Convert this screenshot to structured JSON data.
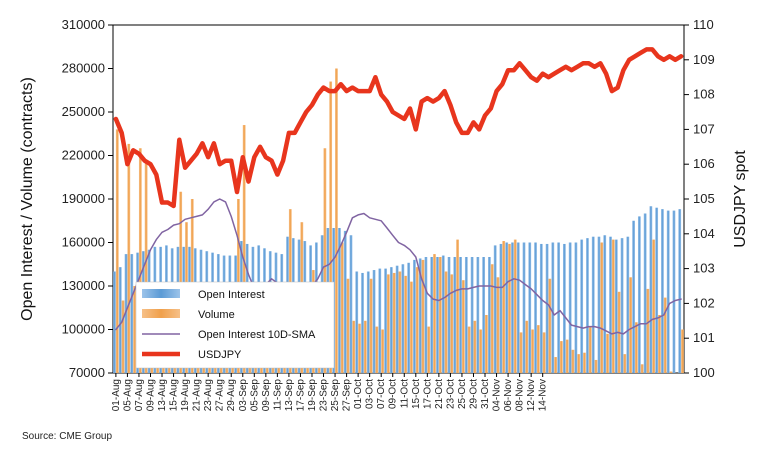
{
  "chart_data": {
    "type": "bar",
    "left_axis": {
      "title": "Open Interest / Volume (contracts)",
      "min": 70000,
      "max": 310000,
      "ticks": [
        "310000",
        "280000",
        "250000",
        "220000",
        "190000",
        "160000",
        "130000",
        "100000",
        "70000"
      ]
    },
    "right_axis": {
      "title": "USDJPY spot",
      "min": 100,
      "max": 110,
      "ticks": [
        "110",
        "109",
        "108",
        "107",
        "106",
        "105",
        "104",
        "103",
        "102",
        "101",
        "100"
      ]
    },
    "x_tick_labels": [
      "01-Aug",
      "05-Aug",
      "07-Aug",
      "09-Aug",
      "13-Aug",
      "15-Aug",
      "19-Aug",
      "21-Aug",
      "23-Aug",
      "27-Aug",
      "29-Aug",
      "03-Sep",
      "05-Sep",
      "09-Sep",
      "11-Sep",
      "13-Sep",
      "17-Sep",
      "19-Sep",
      "23-Sep",
      "25-Sep",
      "27-Sep",
      "01-Oct",
      "03-Oct",
      "07-Oct",
      "09-Oct",
      "11-Oct",
      "15-Oct",
      "17-Oct",
      "21-Oct",
      "23-Oct",
      "25-Oct",
      "29-Oct",
      "31-Oct",
      "04-Nov",
      "06-Nov",
      "08-Nov",
      "12-Nov",
      "14-Nov"
    ],
    "x_tick_every": 2,
    "legend": {
      "position": "inside-lower-left"
    },
    "series": [
      {
        "name": "Open Interest",
        "kind": "bar",
        "axis": "left",
        "color": "#5b9bd5",
        "values": [
          140000,
          143000,
          152000,
          152000,
          153000,
          154000,
          155000,
          157000,
          157000,
          158000,
          156000,
          157000,
          157000,
          157000,
          156000,
          155000,
          154000,
          153000,
          152000,
          151000,
          151000,
          151000,
          161000,
          159000,
          157000,
          158000,
          156000,
          154000,
          153000,
          152000,
          164000,
          163000,
          162000,
          161000,
          158000,
          160000,
          165000,
          170000,
          170000,
          170000,
          168000,
          165000,
          140000,
          139000,
          140000,
          141000,
          142000,
          142000,
          143000,
          144000,
          145000,
          146000,
          148000,
          149000,
          150000,
          150000,
          150000,
          151000,
          150000,
          150000,
          150000,
          150000,
          150000,
          150000,
          150000,
          150000,
          158000,
          159000,
          160000,
          160000,
          160000,
          160000,
          160000,
          160000,
          159000,
          159000,
          160000,
          160000,
          159000,
          160000,
          160000,
          162000,
          163000,
          164000,
          164000,
          165000,
          164000,
          162000,
          163000,
          164000,
          175000,
          178000,
          180000,
          185000,
          184000,
          183000,
          182000,
          182000,
          183000
        ]
      },
      {
        "name": "Volume",
        "kind": "bar",
        "axis": "left",
        "color": "#f0a04b",
        "values": [
          238000,
          120000,
          228000,
          130000,
          225000,
          215000,
          118000,
          112000,
          110000,
          100000,
          120000,
          195000,
          174000,
          190000,
          130000,
          110000,
          106000,
          103000,
          100000,
          108000,
          104000,
          190000,
          241000,
          110000,
          103000,
          120000,
          98000,
          108000,
          112000,
          100000,
          183000,
          120000,
          174000,
          102000,
          141000,
          104000,
          225000,
          271000,
          280000,
          160000,
          135000,
          106000,
          104000,
          106000,
          135000,
          102000,
          100000,
          138000,
          139000,
          140000,
          137000,
          133000,
          143000,
          148000,
          102000,
          152000,
          150000,
          140000,
          138000,
          162000,
          134000,
          102000,
          106000,
          100000,
          110000,
          145000,
          136000,
          161000,
          159000,
          162000,
          98000,
          106000,
          100000,
          103000,
          98000,
          135000,
          81000,
          92000,
          93000,
          86000,
          83000,
          84000,
          102000,
          79000,
          160000,
          97000,
          162000,
          126000,
          83000,
          136000,
          105000,
          76000,
          128000,
          162000,
          110000,
          122000,
          71000,
          70000,
          100000
        ]
      },
      {
        "name": "Open Interest 10D-SMA",
        "kind": "line",
        "axis": "left",
        "color": "#8064a2",
        "values": [
          100000,
          105000,
          115000,
          125000,
          135000,
          145000,
          155000,
          162000,
          167000,
          169000,
          172000,
          173000,
          176000,
          177000,
          178000,
          179000,
          183000,
          188000,
          190000,
          188000,
          178000,
          165000,
          150000,
          138000,
          128000,
          122000,
          131000,
          135000,
          132000,
          128000,
          125000,
          126000,
          127000,
          124000,
          130000,
          135000,
          143000,
          145000,
          150000,
          158000,
          167000,
          177000,
          179000,
          180000,
          177000,
          176000,
          175000,
          170000,
          165000,
          160000,
          158000,
          155000,
          150000,
          135000,
          125000,
          121000,
          120000,
          122000,
          125000,
          127000,
          128000,
          128000,
          129000,
          130000,
          130000,
          130000,
          129000,
          129000,
          133000,
          135000,
          134000,
          131000,
          128000,
          124000,
          120000,
          117000,
          110000,
          113000,
          108000,
          103000,
          102000,
          101000,
          102000,
          102000,
          101000,
          99000,
          97000,
          98000,
          97000,
          100000,
          102000,
          104000,
          104000,
          107000,
          108000,
          110000,
          118000,
          120000,
          121000
        ]
      },
      {
        "name": "USDJPY",
        "kind": "line",
        "axis": "right",
        "color": "#e8351d",
        "values": [
          107.3,
          106.9,
          106.0,
          106.4,
          106.3,
          106.1,
          106.0,
          105.7,
          104.9,
          104.9,
          104.8,
          106.7,
          105.9,
          106.1,
          106.3,
          106.6,
          106.2,
          106.6,
          106.0,
          106.1,
          106.1,
          105.2,
          106.2,
          105.5,
          106.2,
          106.5,
          106.2,
          106.1,
          105.7,
          106.1,
          106.9,
          106.9,
          107.2,
          107.5,
          107.7,
          108.0,
          108.2,
          108.1,
          108.1,
          108.3,
          108.1,
          108.2,
          108.1,
          108.1,
          108.1,
          108.5,
          108.0,
          107.8,
          107.5,
          107.4,
          107.3,
          107.6,
          107.0,
          107.8,
          107.9,
          107.8,
          107.9,
          108.1,
          107.7,
          107.2,
          106.9,
          106.9,
          107.2,
          107.0,
          107.4,
          107.6,
          108.1,
          108.3,
          108.7,
          108.7,
          108.9,
          108.7,
          108.5,
          108.4,
          108.6,
          108.5,
          108.6,
          108.7,
          108.8,
          108.7,
          108.8,
          108.9,
          108.9,
          108.8,
          108.9,
          108.6,
          108.1,
          108.2,
          108.7,
          109.0,
          109.1,
          109.2,
          109.3,
          109.3,
          109.1,
          109.0,
          109.1,
          109.0,
          109.1
        ]
      }
    ]
  },
  "source": "Source: CME Group"
}
